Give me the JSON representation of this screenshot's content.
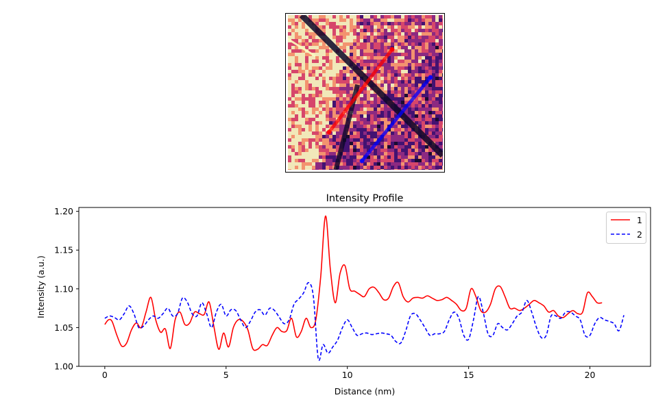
{
  "image_panel": {
    "colormap_colors": [
      "#0d0829",
      "#3b0f70",
      "#8c2981",
      "#de4968",
      "#fe9f6d",
      "#fcfdbf"
    ],
    "lines": [
      {
        "name": "1",
        "color": "#ff0000"
      },
      {
        "name": "2",
        "color": "#0000ff"
      }
    ]
  },
  "chart_data": {
    "type": "line",
    "title": "Intensity Profile",
    "xlabel": "Distance (nm)",
    "ylabel": "Intensity (a.u.)",
    "xlim": [
      -1.07,
      22.5
    ],
    "ylim": [
      1.0,
      1.205
    ],
    "xticks": [
      0,
      5,
      10,
      15,
      20
    ],
    "yticks": [
      1.0,
      1.05,
      1.1,
      1.15,
      1.2
    ],
    "ytick_labels": [
      "1.00",
      "1.05",
      "1.10",
      "1.15",
      "1.20"
    ],
    "grid": false,
    "legend": "top-right",
    "series": [
      {
        "name": "1",
        "color": "#ff0000",
        "style": "solid",
        "x": [
          0.0,
          0.15,
          0.3,
          0.5,
          0.7,
          0.9,
          1.1,
          1.3,
          1.5,
          1.7,
          1.9,
          2.1,
          2.3,
          2.5,
          2.7,
          2.9,
          3.1,
          3.3,
          3.5,
          3.7,
          3.9,
          4.1,
          4.3,
          4.5,
          4.7,
          4.9,
          5.1,
          5.3,
          5.5,
          5.7,
          5.9,
          6.1,
          6.3,
          6.5,
          6.7,
          6.9,
          7.1,
          7.3,
          7.5,
          7.7,
          7.9,
          8.1,
          8.3,
          8.5,
          8.7,
          8.9,
          9.1,
          9.3,
          9.5,
          9.7,
          9.9,
          10.1,
          10.3,
          10.5,
          10.7,
          10.9,
          11.1,
          11.3,
          11.5,
          11.7,
          11.9,
          12.1,
          12.3,
          12.5,
          12.7,
          12.9,
          13.1,
          13.3,
          13.5,
          13.7,
          13.9,
          14.1,
          14.3,
          14.5,
          14.7,
          14.9,
          15.1,
          15.3,
          15.5,
          15.7,
          15.9,
          16.1,
          16.3,
          16.5,
          16.7,
          16.9,
          17.1,
          17.3,
          17.5,
          17.7,
          17.9,
          18.1,
          18.3,
          18.5,
          18.7,
          18.9,
          19.1,
          19.3,
          19.5,
          19.7,
          19.9,
          20.1,
          20.3,
          20.5
        ],
        "y": [
          1.054,
          1.06,
          1.058,
          1.04,
          1.026,
          1.03,
          1.047,
          1.056,
          1.05,
          1.07,
          1.089,
          1.06,
          1.044,
          1.048,
          1.023,
          1.06,
          1.07,
          1.054,
          1.056,
          1.07,
          1.068,
          1.067,
          1.083,
          1.051,
          1.022,
          1.043,
          1.025,
          1.05,
          1.06,
          1.058,
          1.047,
          1.023,
          1.022,
          1.028,
          1.027,
          1.04,
          1.05,
          1.045,
          1.046,
          1.062,
          1.038,
          1.045,
          1.062,
          1.05,
          1.06,
          1.115,
          1.194,
          1.125,
          1.082,
          1.12,
          1.13,
          1.1,
          1.097,
          1.093,
          1.09,
          1.1,
          1.102,
          1.095,
          1.086,
          1.088,
          1.103,
          1.108,
          1.09,
          1.083,
          1.088,
          1.089,
          1.088,
          1.091,
          1.088,
          1.085,
          1.086,
          1.089,
          1.085,
          1.08,
          1.072,
          1.075,
          1.1,
          1.09,
          1.072,
          1.07,
          1.08,
          1.1,
          1.103,
          1.09,
          1.075,
          1.075,
          1.072,
          1.075,
          1.08,
          1.085,
          1.082,
          1.078,
          1.07,
          1.072,
          1.065,
          1.063,
          1.068,
          1.072,
          1.068,
          1.07,
          1.095,
          1.09,
          1.082,
          1.082
        ]
      },
      {
        "name": "2",
        "color": "#0000ff",
        "style": "dashed",
        "x": [
          0.0,
          0.2,
          0.4,
          0.6,
          0.8,
          1.0,
          1.2,
          1.4,
          1.6,
          1.8,
          2.0,
          2.2,
          2.4,
          2.6,
          2.8,
          3.0,
          3.2,
          3.4,
          3.6,
          3.8,
          4.0,
          4.2,
          4.4,
          4.6,
          4.8,
          5.0,
          5.2,
          5.4,
          5.6,
          5.8,
          6.0,
          6.2,
          6.4,
          6.6,
          6.8,
          7.0,
          7.2,
          7.4,
          7.6,
          7.8,
          8.0,
          8.2,
          8.4,
          8.6,
          8.8,
          9.0,
          9.2,
          9.4,
          9.6,
          9.8,
          10.0,
          10.2,
          10.4,
          10.6,
          10.8,
          11.0,
          11.2,
          11.4,
          11.6,
          11.8,
          12.0,
          12.2,
          12.4,
          12.6,
          12.8,
          13.0,
          13.2,
          13.4,
          13.6,
          13.8,
          14.0,
          14.2,
          14.4,
          14.6,
          14.8,
          15.0,
          15.2,
          15.4,
          15.6,
          15.8,
          16.0,
          16.2,
          16.4,
          16.6,
          16.8,
          17.0,
          17.2,
          17.4,
          17.6,
          17.8,
          18.0,
          18.2,
          18.4,
          18.6,
          18.8,
          19.0,
          19.2,
          19.4,
          19.6,
          19.8,
          20.0,
          20.2,
          20.4,
          20.6,
          20.8,
          21.0,
          21.2,
          21.4
        ],
        "y": [
          1.062,
          1.065,
          1.063,
          1.06,
          1.068,
          1.078,
          1.068,
          1.05,
          1.052,
          1.06,
          1.065,
          1.062,
          1.068,
          1.075,
          1.065,
          1.068,
          1.088,
          1.083,
          1.068,
          1.065,
          1.082,
          1.068,
          1.05,
          1.07,
          1.08,
          1.065,
          1.073,
          1.072,
          1.06,
          1.05,
          1.058,
          1.07,
          1.073,
          1.066,
          1.075,
          1.072,
          1.063,
          1.055,
          1.06,
          1.08,
          1.087,
          1.095,
          1.108,
          1.09,
          1.01,
          1.028,
          1.017,
          1.025,
          1.034,
          1.05,
          1.06,
          1.05,
          1.04,
          1.042,
          1.043,
          1.041,
          1.042,
          1.043,
          1.042,
          1.04,
          1.032,
          1.03,
          1.045,
          1.065,
          1.068,
          1.06,
          1.05,
          1.04,
          1.042,
          1.042,
          1.045,
          1.06,
          1.07,
          1.062,
          1.04,
          1.035,
          1.06,
          1.09,
          1.07,
          1.042,
          1.04,
          1.055,
          1.05,
          1.047,
          1.055,
          1.065,
          1.07,
          1.085,
          1.07,
          1.05,
          1.037,
          1.04,
          1.065,
          1.065,
          1.062,
          1.07,
          1.07,
          1.065,
          1.06,
          1.04,
          1.04,
          1.055,
          1.063,
          1.06,
          1.058,
          1.055,
          1.046,
          1.066
        ]
      }
    ]
  }
}
